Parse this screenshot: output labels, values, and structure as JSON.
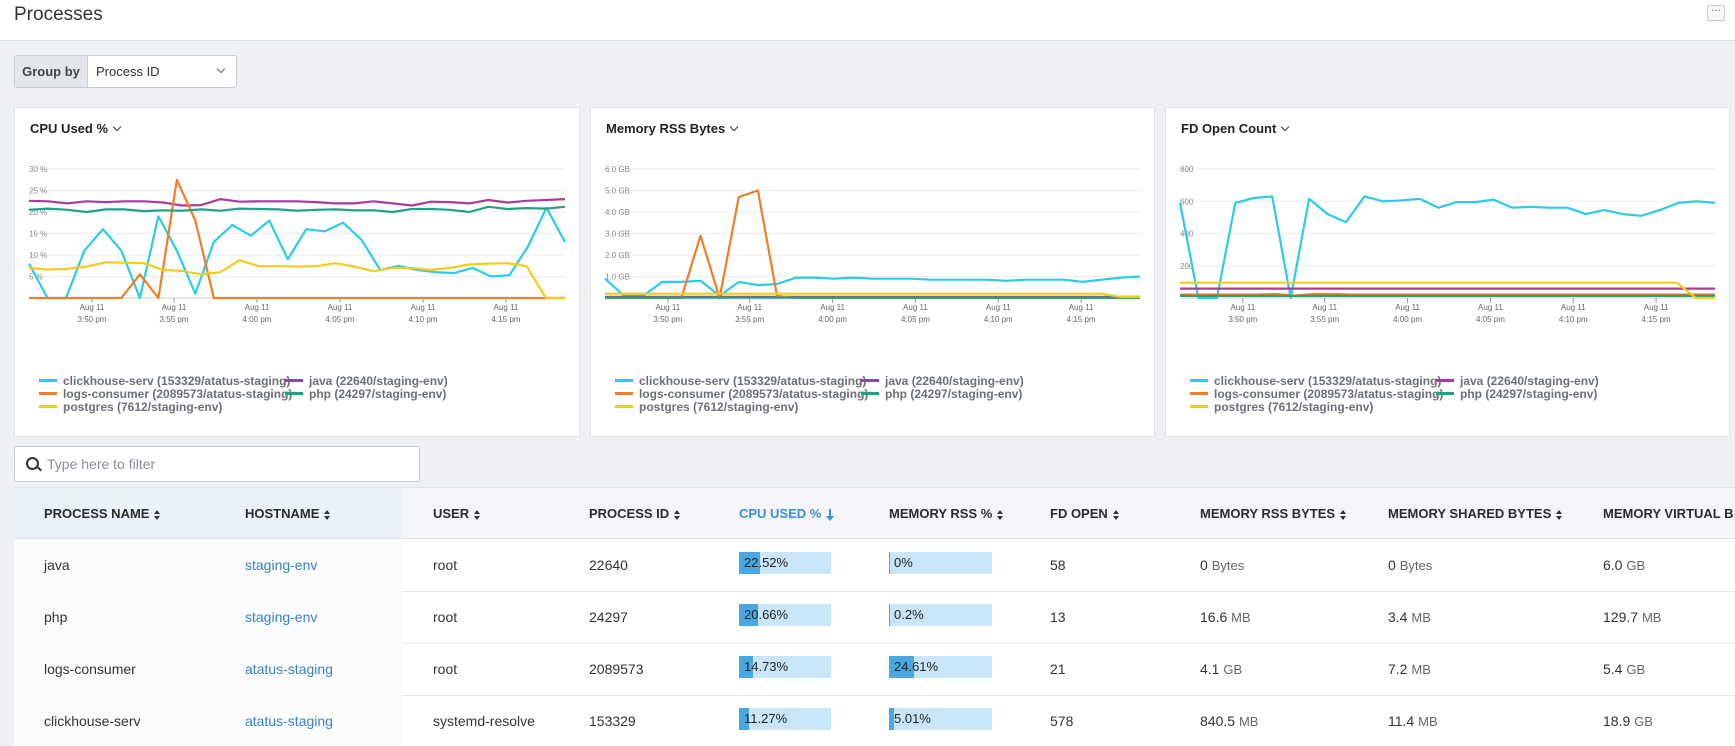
{
  "page": {
    "title": "Processes",
    "more_label": "···"
  },
  "group_by": {
    "label": "Group by",
    "value": "Process ID"
  },
  "colors": {
    "clickhouse": "#2ccbe8",
    "java": "#a83d9c",
    "logs": "#f07d27",
    "php": "#1fa37f",
    "postgres": "#f5cc1c"
  },
  "charts_x_ticks": [
    {
      "date": "Aug 11",
      "time": "3:50 pm"
    },
    {
      "date": "Aug 11",
      "time": "3:55 pm"
    },
    {
      "date": "Aug 11",
      "time": "4:00 pm"
    },
    {
      "date": "Aug 11",
      "time": "4:05 pm"
    },
    {
      "date": "Aug 11",
      "time": "4:10 pm"
    },
    {
      "date": "Aug 11",
      "time": "4:15 pm"
    }
  ],
  "chart_data": [
    {
      "type": "line",
      "title": "CPU Used %",
      "ytick_labels": [
        "30 %",
        "25 %",
        "20 %",
        "15 %",
        "10 %",
        "5 %"
      ],
      "yticks": [
        30,
        25,
        20,
        15,
        10,
        5
      ],
      "ylim": [
        0,
        30
      ],
      "series": [
        {
          "name": "clickhouse-serv (153329/atatus-staging)",
          "color": "clickhouse",
          "values": [
            8,
            0,
            0,
            11,
            16,
            11,
            0,
            19,
            11,
            1,
            13,
            17,
            14.5,
            18,
            9,
            16,
            15.5,
            17.5,
            13.5,
            6.5,
            7.5,
            6.5,
            6,
            5.8,
            7,
            5,
            5.3,
            12,
            21,
            13
          ]
        },
        {
          "name": "java (22640/staging-env)",
          "color": "java",
          "values": [
            22.6,
            22.5,
            22,
            22.5,
            22.3,
            22.5,
            22.5,
            22.2,
            21.5,
            21.6,
            23,
            22.4,
            22.5,
            22.5,
            22.5,
            22.3,
            22,
            22,
            22.5,
            22,
            21.5,
            22.4,
            22.3,
            22,
            22.8,
            22.2,
            22.6,
            22.8,
            23
          ]
        },
        {
          "name": "logs-consumer (2089573/atatus-staging)",
          "color": "logs",
          "values": [
            0,
            0,
            0,
            0,
            0,
            0,
            5.5,
            0,
            27.5,
            18,
            0,
            0,
            0,
            0,
            0,
            0,
            0,
            0,
            0,
            0,
            0,
            0,
            0,
            0,
            0,
            0,
            0,
            0,
            0,
            0
          ]
        },
        {
          "name": "php (24297/staging-env)",
          "color": "php",
          "values": [
            20.5,
            20.8,
            20.5,
            20,
            20.6,
            20.6,
            20.2,
            20.4,
            20.3,
            20.6,
            20.3,
            20.8,
            20.7,
            20.6,
            20.3,
            20.5,
            20.6,
            20.4,
            20.4,
            20,
            20.7,
            20.7,
            20.5,
            20,
            21.2,
            20.7,
            20.9,
            20.8,
            21.2
          ]
        },
        {
          "name": "postgres (7612/staging-env)",
          "color": "postgres",
          "values": [
            7,
            6.6,
            6.8,
            7.3,
            8.3,
            8.2,
            8.1,
            6.5,
            6.3,
            5.5,
            6,
            8.8,
            7.4,
            7.4,
            7.3,
            7.4,
            8.1,
            7.3,
            6.2,
            7,
            7,
            6.5,
            7,
            7.8,
            8,
            8.1,
            7.4,
            0,
            0
          ]
        }
      ]
    },
    {
      "type": "line",
      "title": "Memory RSS Bytes",
      "ytick_labels": [
        "6.0 GB",
        "5.0 GB",
        "4.0 GB",
        "3.0 GB",
        "2.0 GB",
        "1.0 GB"
      ],
      "yticks": [
        6,
        5,
        4,
        3,
        2,
        1
      ],
      "ylim": [
        0,
        6
      ],
      "series": [
        {
          "name": "clickhouse-serv (153329/atatus-staging)",
          "color": "clickhouse",
          "values": [
            0.9,
            0.1,
            0.1,
            0.75,
            0.75,
            0.8,
            0.1,
            0.75,
            0.6,
            0.65,
            0.95,
            0.95,
            0.9,
            0.95,
            0.9,
            0.9,
            0.9,
            0.85,
            0.85,
            0.85,
            0.85,
            0.8,
            0.85,
            0.85,
            0.85,
            0.75,
            0.85,
            0.95,
            1.0
          ]
        },
        {
          "name": "java (22640/staging-env)",
          "color": "java",
          "values": [
            0.05,
            0.05,
            0.05,
            0.05,
            0.05,
            0.05,
            0.05,
            0.05,
            0.05,
            0.05,
            0.05,
            0.05,
            0.05,
            0.05,
            0.05,
            0.05,
            0.05,
            0.05,
            0.05,
            0.05,
            0.05,
            0.05,
            0.05,
            0.05,
            0.05,
            0.05,
            0.05,
            0.05,
            0.05
          ]
        },
        {
          "name": "logs-consumer (2089573/atatus-staging)",
          "color": "logs",
          "values": [
            0,
            0,
            0,
            0,
            0,
            2.9,
            0,
            4.7,
            5,
            0.1,
            0,
            0,
            0,
            0,
            0,
            0,
            0,
            0,
            0,
            0,
            0,
            0,
            0,
            0,
            0,
            0,
            0,
            0,
            0
          ]
        },
        {
          "name": "php (24297/staging-env)",
          "color": "php",
          "values": [
            0.02,
            0.02,
            0.02,
            0.02,
            0.02,
            0.02,
            0.02,
            0.02,
            0.02,
            0.02,
            0.02,
            0.02,
            0.02,
            0.02,
            0.02,
            0.02,
            0.02,
            0.02,
            0.02,
            0.02,
            0.02,
            0.02,
            0.02,
            0.02,
            0.02,
            0.02,
            0.02,
            0.02,
            0.02
          ]
        },
        {
          "name": "postgres (7612/staging-env)",
          "color": "postgres",
          "values": [
            0.2,
            0.2,
            0.2,
            0.2,
            0.2,
            0.2,
            0.2,
            0.2,
            0.2,
            0.2,
            0.2,
            0.2,
            0.2,
            0.2,
            0.2,
            0.2,
            0.2,
            0.2,
            0.2,
            0.2,
            0.2,
            0.2,
            0.2,
            0.2,
            0.2,
            0.2,
            0.2,
            0.05,
            0.05
          ]
        }
      ]
    },
    {
      "type": "line",
      "title": "FD Open Count",
      "ytick_labels": [
        "800",
        "600",
        "400",
        "200"
      ],
      "yticks": [
        800,
        600,
        400,
        200
      ],
      "ylim": [
        0,
        800
      ],
      "series": [
        {
          "name": "clickhouse-serv (153329/atatus-staging)",
          "color": "clickhouse",
          "values": [
            590,
            0,
            0,
            590,
            620,
            630,
            0,
            615,
            520,
            470,
            630,
            600,
            605,
            615,
            560,
            595,
            595,
            610,
            560,
            565,
            560,
            560,
            520,
            545,
            520,
            510,
            545,
            590,
            600,
            590
          ]
        },
        {
          "name": "java (22640/staging-env)",
          "color": "java",
          "values": [
            58,
            58,
            58,
            58,
            58,
            58,
            58,
            58,
            58,
            58,
            58,
            58,
            58,
            58,
            58,
            58,
            58,
            58,
            58,
            58,
            58,
            58,
            58,
            58,
            58,
            58,
            58,
            58,
            58
          ]
        },
        {
          "name": "logs-consumer (2089573/atatus-staging)",
          "color": "logs",
          "values": [
            21,
            21,
            21,
            21,
            21,
            25,
            15,
            25,
            25,
            21,
            21,
            21,
            21,
            21,
            21,
            21,
            21,
            21,
            21,
            21,
            21,
            21,
            21,
            21,
            21,
            21,
            21,
            21,
            21
          ]
        },
        {
          "name": "php (24297/staging-env)",
          "color": "php",
          "values": [
            13,
            13,
            13,
            13,
            13,
            13,
            13,
            13,
            13,
            13,
            13,
            13,
            13,
            13,
            13,
            13,
            13,
            13,
            13,
            13,
            13,
            13,
            13,
            13,
            13,
            13,
            13,
            13,
            13
          ]
        },
        {
          "name": "postgres (7612/staging-env)",
          "color": "postgres",
          "values": [
            95,
            95,
            95,
            95,
            95,
            95,
            95,
            95,
            95,
            95,
            95,
            95,
            95,
            95,
            95,
            95,
            95,
            95,
            95,
            95,
            95,
            95,
            95,
            95,
            95,
            95,
            95,
            0,
            0
          ]
        }
      ]
    }
  ],
  "filter": {
    "placeholder": "Type here to filter"
  },
  "table": {
    "columns": [
      "PROCESS NAME",
      "HOSTNAME",
      "USER",
      "PROCESS ID",
      "CPU USED %",
      "MEMORY RSS %",
      "FD OPEN",
      "MEMORY RSS BYTES",
      "MEMORY SHARED BYTES",
      "MEMORY VIRTUAL B"
    ],
    "rows": [
      {
        "process": "java",
        "host": "staging-env",
        "user": "root",
        "pid": "22640",
        "cpu": "22.52%",
        "cpu_pct": 22.52,
        "mem": "0%",
        "mem_pct": 0,
        "fd": "58",
        "rss_v": "0",
        "rss_u": "Bytes",
        "shared_v": "0",
        "shared_u": "Bytes",
        "virt_v": "6.0",
        "virt_u": "GB"
      },
      {
        "process": "php",
        "host": "staging-env",
        "user": "root",
        "pid": "24297",
        "cpu": "20.66%",
        "cpu_pct": 20.66,
        "mem": "0.2%",
        "mem_pct": 0.2,
        "fd": "13",
        "rss_v": "16.6",
        "rss_u": "MB",
        "shared_v": "3.4",
        "shared_u": "MB",
        "virt_v": "129.7",
        "virt_u": "MB"
      },
      {
        "process": "logs-consumer",
        "host": "atatus-staging",
        "user": "root",
        "pid": "2089573",
        "cpu": "14.73%",
        "cpu_pct": 14.73,
        "mem": "24.61%",
        "mem_pct": 24.61,
        "fd": "21",
        "rss_v": "4.1",
        "rss_u": "GB",
        "shared_v": "7.2",
        "shared_u": "MB",
        "virt_v": "5.4",
        "virt_u": "GB"
      },
      {
        "process": "clickhouse-serv",
        "host": "atatus-staging",
        "user": "systemd-resolve",
        "pid": "153329",
        "cpu": "11.27%",
        "cpu_pct": 11.27,
        "mem": "5.01%",
        "mem_pct": 5.01,
        "fd": "578",
        "rss_v": "840.5",
        "rss_u": "MB",
        "shared_v": "11.4",
        "shared_u": "MB",
        "virt_v": "18.9",
        "virt_u": "GB"
      }
    ]
  }
}
